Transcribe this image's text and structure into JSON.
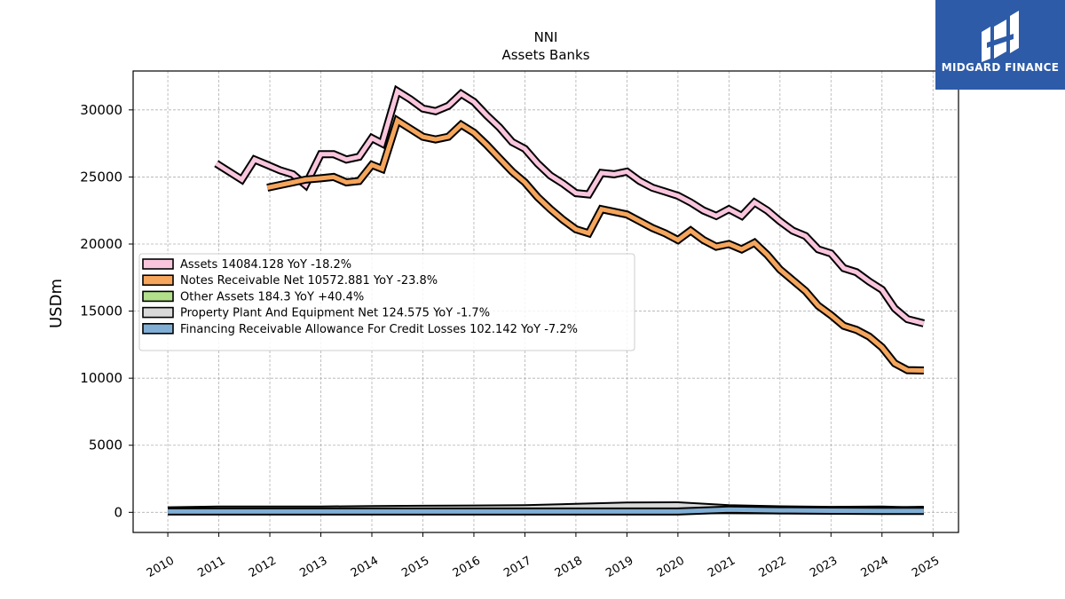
{
  "title": "NNI",
  "subtitle": "Assets Banks",
  "logo": {
    "text": "MIDGARD FINANCE",
    "color": "#2d5ba8"
  },
  "chart_data": {
    "type": "line",
    "title": "NNI",
    "subtitle": "Assets Banks",
    "xlabel": "",
    "ylabel": "USDm",
    "xlim": [
      2009.32,
      2025.5
    ],
    "ylim": [
      -1500,
      32900
    ],
    "grid": true,
    "legend_position": "center-left",
    "x_ticks": [
      "2010",
      "2011",
      "2012",
      "2013",
      "2014",
      "2015",
      "2016",
      "2017",
      "2018",
      "2019",
      "2020",
      "2021",
      "2022",
      "2023",
      "2024",
      "2025"
    ],
    "y_ticks": [
      "0",
      "5000",
      "10000",
      "15000",
      "20000",
      "25000",
      "30000"
    ],
    "series": [
      {
        "name": "Assets",
        "legend": "Assets  14084.128 YoY -18.2%",
        "color": "#f9c5dd",
        "x": [
          2010.95,
          2011.45,
          2011.7,
          2011.95,
          2012.2,
          2012.45,
          2012.7,
          2013.0,
          2013.25,
          2013.5,
          2013.75,
          2014.0,
          2014.2,
          2014.5,
          2014.75,
          2015.0,
          2015.25,
          2015.5,
          2015.75,
          2016.0,
          2016.25,
          2016.5,
          2016.75,
          2017.0,
          2017.25,
          2017.5,
          2017.75,
          2018.0,
          2018.25,
          2018.5,
          2018.75,
          2019.0,
          2019.25,
          2019.5,
          2019.75,
          2020.0,
          2020.25,
          2020.5,
          2020.75,
          2021.0,
          2021.25,
          2021.5,
          2021.75,
          2022.0,
          2022.25,
          2022.5,
          2022.75,
          2023.0,
          2023.25,
          2023.5,
          2023.75,
          2024.0,
          2024.25,
          2024.5,
          2024.82
        ],
        "values": [
          26000,
          24800,
          26300,
          25900,
          25500,
          25200,
          24400,
          26700,
          26700,
          26300,
          26500,
          27900,
          27500,
          31400,
          30800,
          30100,
          29900,
          30300,
          31200,
          30600,
          29600,
          28700,
          27600,
          27100,
          26000,
          25100,
          24500,
          23800,
          23700,
          25300,
          25200,
          25400,
          24700,
          24200,
          23900,
          23600,
          23100,
          22500,
          22100,
          22600,
          22100,
          23100,
          22500,
          21700,
          21000,
          20600,
          19600,
          19300,
          18200,
          17900,
          17200,
          16600,
          15200,
          14400,
          14084
        ]
      },
      {
        "name": "Notes Receivable Net",
        "legend": "Notes Receivable Net  10572.881 YoY -23.8%",
        "color": "#f5a55c",
        "x": [
          2011.95,
          2012.2,
          2012.45,
          2012.7,
          2013.0,
          2013.25,
          2013.5,
          2013.75,
          2014.0,
          2014.2,
          2014.5,
          2014.75,
          2015.0,
          2015.25,
          2015.5,
          2015.75,
          2016.0,
          2016.25,
          2016.5,
          2016.75,
          2017.0,
          2017.25,
          2017.5,
          2017.75,
          2018.0,
          2018.25,
          2018.5,
          2018.75,
          2019.0,
          2019.25,
          2019.5,
          2019.75,
          2020.0,
          2020.25,
          2020.5,
          2020.75,
          2021.0,
          2021.25,
          2021.5,
          2021.75,
          2022.0,
          2022.25,
          2022.5,
          2022.75,
          2023.0,
          2023.25,
          2023.5,
          2023.75,
          2024.0,
          2024.25,
          2024.5,
          2024.82
        ],
        "values": [
          24200,
          24400,
          24600,
          24800,
          24900,
          25000,
          24600,
          24700,
          25900,
          25600,
          29200,
          28600,
          28000,
          27800,
          28000,
          28900,
          28300,
          27400,
          26400,
          25400,
          24600,
          23500,
          22600,
          21800,
          21100,
          20800,
          22600,
          22400,
          22200,
          21700,
          21200,
          20800,
          20300,
          21000,
          20300,
          19800,
          20000,
          19600,
          20100,
          19200,
          18100,
          17300,
          16500,
          15400,
          14700,
          13900,
          13600,
          13100,
          12300,
          11100,
          10600,
          10573
        ]
      },
      {
        "name": "Other Assets",
        "legend": "Other Assets  184.3 YoY +40.4%",
        "color": "#b2df8a",
        "x": [
          2010.0,
          2011.0,
          2012.0,
          2013.0,
          2014.0,
          2015.0,
          2016.0,
          2017.0,
          2018.0,
          2019.0,
          2020.0,
          2021.0,
          2022.0,
          2023.0,
          2024.0,
          2024.82
        ],
        "values": [
          100,
          100,
          100,
          110,
          120,
          130,
          140,
          150,
          160,
          170,
          180,
          160,
          150,
          140,
          131,
          184
        ]
      },
      {
        "name": "Property Plant And Equipment Net",
        "legend": "Property Plant And Equipment Net  124.575 YoY -1.7%",
        "color": "#d9d9d9",
        "x": [
          2010.0,
          2011.0,
          2012.0,
          2013.0,
          2014.0,
          2015.0,
          2016.0,
          2017.0,
          2018.0,
          2019.0,
          2020.0,
          2021.0,
          2022.0,
          2023.0,
          2024.0,
          2024.82
        ],
        "values": [
          150,
          200,
          200,
          210,
          230,
          260,
          280,
          300,
          400,
          500,
          520,
          300,
          220,
          180,
          200,
          125
        ]
      },
      {
        "name": "Financing Receivable Allowance For Credit Losses",
        "legend": "Financing Receivable Allowance For Credit Losses  102.142 YoY -7.2%",
        "color": "#80aed4",
        "x": [
          2010.0,
          2011.0,
          2012.0,
          2013.0,
          2014.0,
          2015.0,
          2016.0,
          2017.0,
          2018.0,
          2019.0,
          2020.0,
          2021.0,
          2022.0,
          2023.0,
          2024.0,
          2024.82
        ],
        "values": [
          60,
          60,
          60,
          60,
          60,
          60,
          60,
          60,
          60,
          60,
          60,
          200,
          150,
          120,
          110,
          102
        ]
      }
    ]
  }
}
